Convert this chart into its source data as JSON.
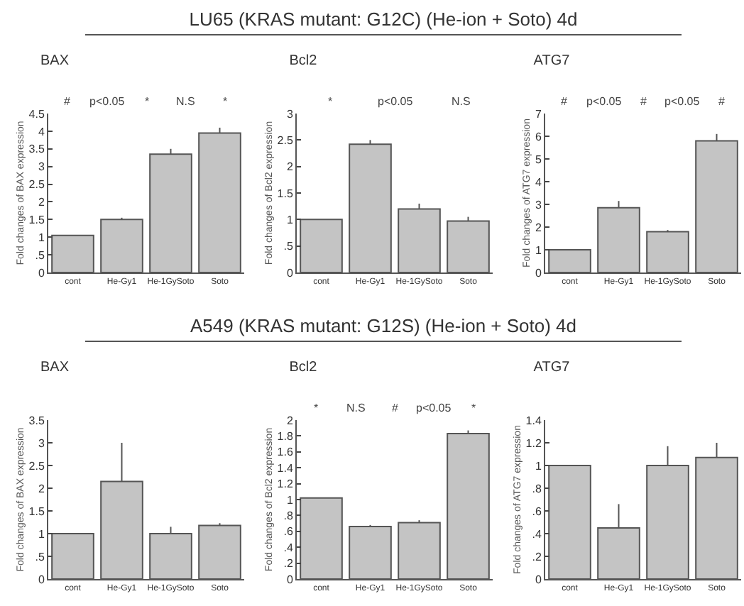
{
  "chart_data": [
    {
      "type": "bar",
      "subtitle": "LU65 (KRAS mutant: G12C) (He-ion + Soto) 4d",
      "title": "BAX",
      "ylabel": "Fold changes of BAX expression",
      "categories": [
        "cont",
        "He-Gy1",
        "He-1GySoto",
        "Soto"
      ],
      "values": [
        1.05,
        1.5,
        3.35,
        3.95
      ],
      "errors": [
        null,
        [
          1.5,
          1.55
        ],
        [
          3.35,
          3.5
        ],
        [
          3.95,
          4.1
        ]
      ],
      "color": "#c4c4c4",
      "ylim": [
        0,
        4.5
      ],
      "yticks": [
        0,
        {
          "value": 0.5,
          "label": ".5"
        },
        1,
        1.5,
        2,
        2.5,
        3,
        3.5,
        4,
        4.5
      ],
      "grid": false,
      "annotations": [
        "#",
        "p<0.05",
        "*",
        "N.S",
        "*"
      ]
    },
    {
      "type": "bar",
      "title": "Bcl2",
      "ylabel": "Fold changes of Bcl2 expression",
      "categories": [
        "cont",
        "He-Gy1",
        "He-1GySoto",
        "Soto"
      ],
      "values": [
        1.0,
        2.42,
        1.2,
        0.97
      ],
      "errors": [
        null,
        [
          2.42,
          2.5
        ],
        [
          1.2,
          1.3
        ],
        [
          0.97,
          1.05
        ]
      ],
      "color": "#c4c4c4",
      "ylim": [
        0,
        3
      ],
      "yticks": [
        0,
        {
          "value": 0.5,
          "label": ".5"
        },
        1,
        1.5,
        2,
        2.5,
        3
      ],
      "grid": false,
      "annotations": [
        "*",
        "p<0.05",
        "N.S"
      ]
    },
    {
      "type": "bar",
      "title": "ATG7",
      "ylabel": "Fold changes of ATG7 expression",
      "categories": [
        "cont",
        "He-Gy1",
        "He-1GySoto",
        "Soto"
      ],
      "values": [
        1.0,
        2.85,
        1.8,
        5.8
      ],
      "errors": [
        null,
        [
          2.85,
          3.15
        ],
        [
          1.8,
          1.87
        ],
        [
          5.8,
          6.1
        ]
      ],
      "color": "#c4c4c4",
      "ylim": [
        0,
        7
      ],
      "yticks": [
        0,
        1,
        2,
        3,
        4,
        5,
        6,
        7
      ],
      "grid": false,
      "annotations": [
        "#",
        "p<0.05",
        "#",
        "p<0.05",
        "#"
      ]
    },
    {
      "type": "bar",
      "subtitle": "A549 (KRAS mutant: G12S)  (He-ion + Soto) 4d",
      "title": "BAX",
      "ylabel": "Fold changes of BAX expression",
      "categories": [
        "cont",
        "He-Gy1",
        "He-1GySoto",
        "Soto"
      ],
      "values": [
        1.0,
        2.15,
        1.0,
        1.18
      ],
      "errors": [
        null,
        [
          2.15,
          3.0
        ],
        [
          1.0,
          1.15
        ],
        [
          1.18,
          1.23
        ]
      ],
      "color": "#c4c4c4",
      "ylim": [
        0,
        3.5
      ],
      "yticks": [
        0,
        {
          "value": 0.5,
          "label": ".5"
        },
        1,
        1.5,
        2,
        2.5,
        3,
        3.5
      ],
      "grid": false
    },
    {
      "type": "bar",
      "title": "Bcl2",
      "ylabel": "Fold changes of Bcl2 expression",
      "categories": [
        "cont",
        "He-Gy1",
        "He-1GySoto",
        "Soto"
      ],
      "values": [
        1.02,
        0.66,
        0.71,
        1.83
      ],
      "errors": [
        null,
        [
          0.66,
          0.68
        ],
        [
          0.71,
          0.74
        ],
        [
          1.83,
          1.87
        ]
      ],
      "color": "#c4c4c4",
      "ylim": [
        0,
        2
      ],
      "yticks": [
        0,
        {
          "value": 0.2,
          "label": ".2"
        },
        {
          "value": 0.4,
          "label": ".4"
        },
        {
          "value": 0.6,
          "label": ".6"
        },
        {
          "value": 0.8,
          "label": ".8"
        },
        1,
        1.2,
        1.4,
        1.6,
        1.8,
        2
      ],
      "grid": false,
      "annotations": [
        "*",
        "N.S",
        "#",
        "p<0.05",
        "*"
      ]
    },
    {
      "type": "bar",
      "title": "ATG7",
      "ylabel": "Fold changes of ATG7 expression",
      "categories": [
        "cont",
        "He-Gy1",
        "He-1GySoto",
        "Soto"
      ],
      "values": [
        1.0,
        0.45,
        1.0,
        1.07
      ],
      "errors": [
        null,
        [
          0.45,
          0.66
        ],
        [
          1.0,
          1.17
        ],
        [
          1.07,
          1.2
        ]
      ],
      "color": "#c4c4c4",
      "ylim": [
        0,
        1.4
      ],
      "yticks": [
        0,
        {
          "value": 0.2,
          "label": ".2"
        },
        {
          "value": 0.4,
          "label": ".4"
        },
        {
          "value": 0.6,
          "label": ".6"
        },
        {
          "value": 0.8,
          "label": ".8"
        },
        1,
        1.2,
        1.4
      ],
      "grid": false
    }
  ]
}
